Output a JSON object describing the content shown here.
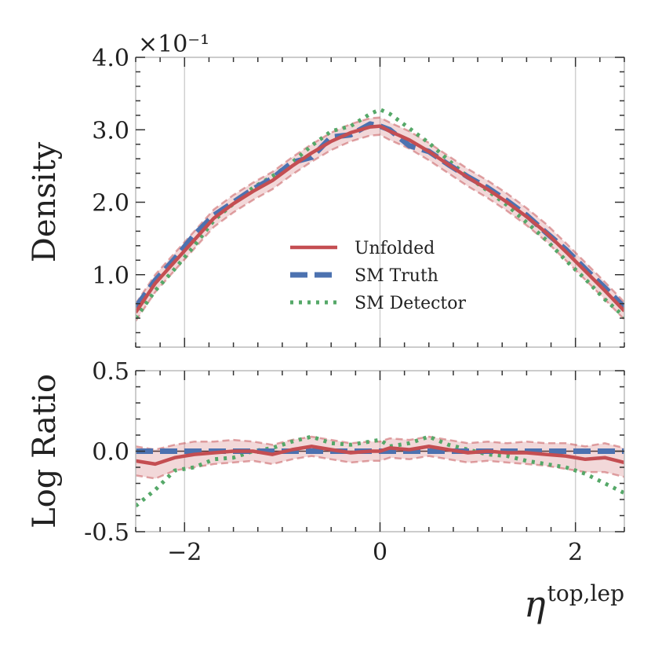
{
  "chart_data": [
    {
      "panel": "main",
      "type": "line",
      "ylabel": "Density",
      "scale_label": "×10⁻¹",
      "scale_exponent": -1,
      "xlim": [
        -2.5,
        2.5
      ],
      "ylim": [
        0.0,
        4.0
      ],
      "yticks": [
        1.0,
        2.0,
        3.0,
        4.0
      ],
      "ytick_labels": [
        "1.0",
        "2.0",
        "3.0",
        "4.0"
      ],
      "xticks": [
        -2,
        0,
        2
      ],
      "vertical_grid": true,
      "legend": {
        "position": "center-right",
        "entries": [
          {
            "label": "Unfolded",
            "style": "solid",
            "color": "#c44e52"
          },
          {
            "label": "SM Truth",
            "style": "dashed",
            "color": "#4c72b0"
          },
          {
            "label": "SM Detector",
            "style": "dotted",
            "color": "#55a868"
          }
        ]
      },
      "x": [
        -2.5,
        -2.3,
        -2.1,
        -1.9,
        -1.7,
        -1.5,
        -1.3,
        -1.1,
        -0.9,
        -0.7,
        -0.5,
        -0.3,
        -0.1,
        0.0,
        0.1,
        0.3,
        0.5,
        0.7,
        0.9,
        1.1,
        1.3,
        1.5,
        1.7,
        1.9,
        2.1,
        2.3,
        2.5
      ],
      "series": [
        {
          "name": "Unfolded",
          "color": "#c44e52",
          "style": "solid",
          "values": [
            0.48,
            0.88,
            1.18,
            1.48,
            1.78,
            1.98,
            2.15,
            2.3,
            2.5,
            2.68,
            2.84,
            2.96,
            3.04,
            3.05,
            2.98,
            2.86,
            2.7,
            2.52,
            2.34,
            2.18,
            2.0,
            1.8,
            1.58,
            1.32,
            1.05,
            0.78,
            0.5
          ],
          "band": [
            0.12,
            0.12,
            0.12,
            0.12,
            0.12,
            0.12,
            0.12,
            0.12,
            0.12,
            0.12,
            0.12,
            0.12,
            0.12,
            0.12,
            0.12,
            0.12,
            0.12,
            0.12,
            0.12,
            0.12,
            0.12,
            0.12,
            0.12,
            0.12,
            0.12,
            0.12,
            0.12
          ]
        },
        {
          "name": "SM Truth",
          "color": "#4c72b0",
          "style": "dashed",
          "values": [
            0.55,
            0.92,
            1.22,
            1.55,
            1.82,
            2.0,
            2.18,
            2.33,
            2.55,
            2.62,
            2.9,
            2.93,
            3.08,
            3.05,
            3.0,
            2.78,
            2.7,
            2.52,
            2.35,
            2.2,
            2.02,
            1.82,
            1.58,
            1.35,
            1.08,
            0.82,
            0.55
          ]
        },
        {
          "name": "SM Detector",
          "color": "#55a868",
          "style": "dotted",
          "values": [
            0.4,
            0.78,
            1.08,
            1.4,
            1.75,
            1.98,
            2.2,
            2.36,
            2.55,
            2.78,
            2.98,
            3.05,
            3.22,
            3.28,
            3.22,
            3.02,
            2.82,
            2.58,
            2.35,
            2.16,
            1.96,
            1.72,
            1.48,
            1.2,
            0.94,
            0.66,
            0.42
          ]
        }
      ]
    },
    {
      "panel": "ratio",
      "type": "line",
      "ylabel": "Log Ratio",
      "xlabel": "η^{top,lep}",
      "xlabel_base": "η",
      "xlabel_sup": "top,lep",
      "xlim": [
        -2.5,
        2.5
      ],
      "ylim": [
        -0.5,
        0.5
      ],
      "yticks": [
        -0.5,
        0.0,
        0.5
      ],
      "ytick_labels": [
        "-0.5",
        "0.0",
        "0.5"
      ],
      "xticks": [
        -2,
        0,
        2
      ],
      "xtick_labels": [
        "−2",
        "0",
        "2"
      ],
      "vertical_grid": true,
      "x": [
        -2.5,
        -2.3,
        -2.1,
        -1.9,
        -1.7,
        -1.5,
        -1.3,
        -1.1,
        -0.9,
        -0.7,
        -0.5,
        -0.3,
        -0.1,
        0.0,
        0.1,
        0.3,
        0.5,
        0.7,
        0.9,
        1.1,
        1.3,
        1.5,
        1.7,
        1.9,
        2.1,
        2.3,
        2.5
      ],
      "series": [
        {
          "name": "Unfolded",
          "color": "#c44e52",
          "style": "solid",
          "values": [
            -0.06,
            -0.08,
            -0.04,
            -0.02,
            -0.01,
            0.0,
            0.0,
            -0.02,
            0.01,
            0.03,
            0.01,
            -0.01,
            0.0,
            0.0,
            0.02,
            0.01,
            0.03,
            0.01,
            -0.01,
            0.0,
            -0.01,
            -0.01,
            -0.02,
            -0.03,
            -0.05,
            -0.04,
            -0.07
          ],
          "band": [
            0.09,
            0.09,
            0.08,
            0.08,
            0.07,
            0.07,
            0.06,
            0.06,
            0.06,
            0.06,
            0.06,
            0.06,
            0.06,
            0.06,
            0.06,
            0.06,
            0.06,
            0.06,
            0.06,
            0.06,
            0.06,
            0.07,
            0.07,
            0.08,
            0.08,
            0.09,
            0.09
          ]
        },
        {
          "name": "SM Truth",
          "color": "#4c72b0",
          "style": "dashed",
          "values": [
            0,
            0,
            0,
            0,
            0,
            0,
            0,
            0,
            0,
            0,
            0,
            0,
            0,
            0,
            0,
            0,
            0,
            0,
            0,
            0,
            0,
            0,
            0,
            0,
            0,
            0,
            0
          ]
        },
        {
          "name": "SM Detector",
          "color": "#55a868",
          "style": "dotted",
          "values": [
            -0.34,
            -0.24,
            -0.12,
            -0.1,
            -0.05,
            -0.04,
            0.0,
            0.02,
            0.06,
            0.09,
            0.05,
            0.04,
            0.06,
            0.07,
            0.03,
            0.05,
            0.09,
            0.04,
            0.01,
            -0.02,
            -0.03,
            -0.06,
            -0.08,
            -0.1,
            -0.14,
            -0.2,
            -0.26
          ]
        }
      ]
    }
  ]
}
